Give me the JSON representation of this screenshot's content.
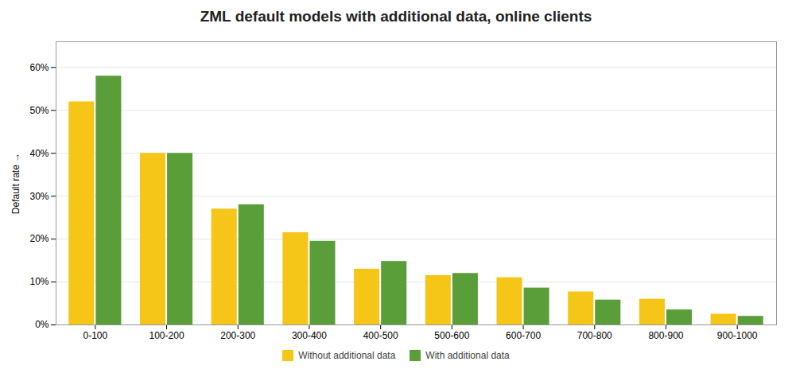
{
  "chart_data": {
    "type": "bar",
    "title": "ZML default models with additional data, online clients",
    "ylabel": "Default rate",
    "categories": [
      "0-100",
      "100-200",
      "200-300",
      "300-400",
      "400-500",
      "500-600",
      "600-700",
      "700-800",
      "800-900",
      "900-1000"
    ],
    "series": [
      {
        "name": "Without additional data",
        "color": "#F5C518",
        "values": [
          0.52,
          0.4,
          0.27,
          0.215,
          0.13,
          0.115,
          0.11,
          0.077,
          0.06,
          0.025
        ]
      },
      {
        "name": "With additional data",
        "color": "#5A9E3A",
        "values": [
          0.58,
          0.4,
          0.28,
          0.195,
          0.148,
          0.12,
          0.086,
          0.058,
          0.035,
          0.02
        ]
      }
    ],
    "ylim": [
      0,
      0.66
    ],
    "yticks": [
      {
        "value": 0.0,
        "label": "0%"
      },
      {
        "value": 0.1,
        "label": "10%"
      },
      {
        "value": 0.2,
        "label": "20%"
      },
      {
        "value": 0.3,
        "label": "30%"
      },
      {
        "value": 0.4,
        "label": "40%"
      },
      {
        "value": 0.5,
        "label": "50%"
      },
      {
        "value": 0.6,
        "label": "60%"
      }
    ],
    "grid": true,
    "legend": "bottom"
  }
}
